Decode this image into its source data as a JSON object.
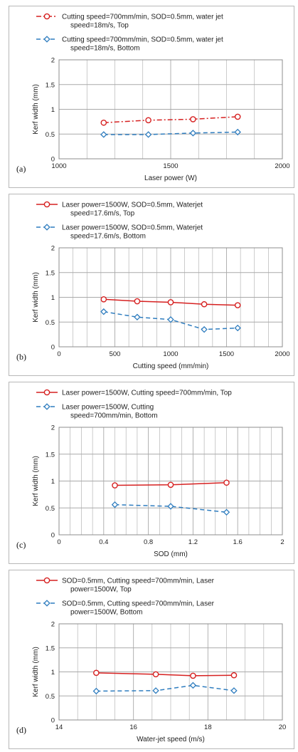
{
  "colors": {
    "top": "#d62020",
    "bottom": "#2f7dbf",
    "grid": "#a9a9a9",
    "frame": "#8c8c8c"
  },
  "chart_data": [
    {
      "type": "line",
      "panel_label": "(a)",
      "xlabel": "Laser power (W)",
      "ylabel": "Kerf width (mm)",
      "xlim": [
        1000,
        2000
      ],
      "ylim": [
        0,
        2
      ],
      "xticks": [
        "1000",
        "1500",
        "2000"
      ],
      "yticks": [
        "0",
        "0.5",
        "1",
        "1.5",
        "2"
      ],
      "grid": true,
      "legend_position": "top",
      "series": [
        {
          "name_lines": [
            "Cutting speed=700mm/min, SOD=0.5mm, water jet",
            "speed=18m/s, Top"
          ],
          "marker": "circle",
          "line_style": "dash-dot",
          "x": [
            1200,
            1400,
            1600,
            1800
          ],
          "y": [
            0.73,
            0.78,
            0.8,
            0.85
          ]
        },
        {
          "name_lines": [
            "Cutting speed=700mm/min, SOD=0.5mm, water jet",
            "speed=18m/s, Bottom"
          ],
          "marker": "diamond",
          "line_style": "dashed",
          "x": [
            1200,
            1400,
            1600,
            1800
          ],
          "y": [
            0.49,
            0.49,
            0.52,
            0.54
          ]
        }
      ]
    },
    {
      "type": "line",
      "panel_label": "(b)",
      "xlabel": "Cutting speed (mm/min)",
      "ylabel": "Kerf width (mm)",
      "xlim": [
        0,
        2000
      ],
      "ylim": [
        0,
        2
      ],
      "xticks": [
        "0",
        "500",
        "1000",
        "1500",
        "2000"
      ],
      "yticks": [
        "0",
        "0.5",
        "1",
        "1.5",
        "2"
      ],
      "grid": true,
      "legend_position": "top",
      "series": [
        {
          "name_lines": [
            "Laser power=1500W, SOD=0.5mm, Waterjet",
            "speed=17.6m/s, Top"
          ],
          "marker": "circle",
          "line_style": "solid",
          "x": [
            400,
            700,
            1000,
            1300,
            1600
          ],
          "y": [
            0.96,
            0.92,
            0.9,
            0.86,
            0.84
          ]
        },
        {
          "name_lines": [
            "Laser power=1500W, SOD=0.5mm, Waterjet",
            "speed=17.6m/s, Bottom"
          ],
          "marker": "diamond",
          "line_style": "dashed",
          "x": [
            400,
            700,
            1000,
            1300,
            1600
          ],
          "y": [
            0.71,
            0.6,
            0.55,
            0.35,
            0.38
          ]
        }
      ]
    },
    {
      "type": "line",
      "panel_label": "(c)",
      "xlabel": "SOD (mm)",
      "ylabel": "Kerf width (mm)",
      "xlim": [
        0,
        2
      ],
      "ylim": [
        0,
        2
      ],
      "xticks": [
        "0",
        "0.4",
        "0.8",
        "1.2",
        "1.6",
        "2"
      ],
      "yticks": [
        "0",
        "0.5",
        "1",
        "1.5",
        "2"
      ],
      "grid": true,
      "legend_position": "top",
      "series": [
        {
          "name_lines": [
            "Laser power=1500W, Cutting speed=700mm/min, Top"
          ],
          "marker": "circle",
          "line_style": "solid",
          "x": [
            0.5,
            1.0,
            1.5
          ],
          "y": [
            0.92,
            0.93,
            0.97
          ]
        },
        {
          "name_lines": [
            "Laser power=1500W, Cutting",
            "speed=700mm/min, Bottom"
          ],
          "marker": "diamond",
          "line_style": "dashed",
          "x": [
            0.5,
            1.0,
            1.5
          ],
          "y": [
            0.56,
            0.53,
            0.42
          ]
        }
      ]
    },
    {
      "type": "line",
      "panel_label": "(d)",
      "xlabel": "Water-jet speed (m/s)",
      "ylabel": "Kerf width (mm)",
      "xlim": [
        14,
        20
      ],
      "ylim": [
        0,
        2
      ],
      "xticks": [
        "14",
        "16",
        "18",
        "20"
      ],
      "yticks": [
        "0",
        "0.5",
        "1",
        "1.5",
        "2"
      ],
      "grid": true,
      "legend_position": "top",
      "series": [
        {
          "name_lines": [
            "SOD=0.5mm, Cutting speed=700mm/min, Laser",
            "power=1500W, Top"
          ],
          "marker": "circle",
          "line_style": "solid",
          "x": [
            15,
            16.6,
            17.6,
            18.7
          ],
          "y": [
            0.98,
            0.95,
            0.92,
            0.93
          ]
        },
        {
          "name_lines": [
            "SOD=0.5mm, Cutting speed=700mm/min, Laser",
            "power=1500W, Bottom"
          ],
          "marker": "diamond",
          "line_style": "dashed",
          "x": [
            15,
            16.6,
            17.6,
            18.7
          ],
          "y": [
            0.6,
            0.61,
            0.72,
            0.61
          ]
        }
      ]
    }
  ]
}
